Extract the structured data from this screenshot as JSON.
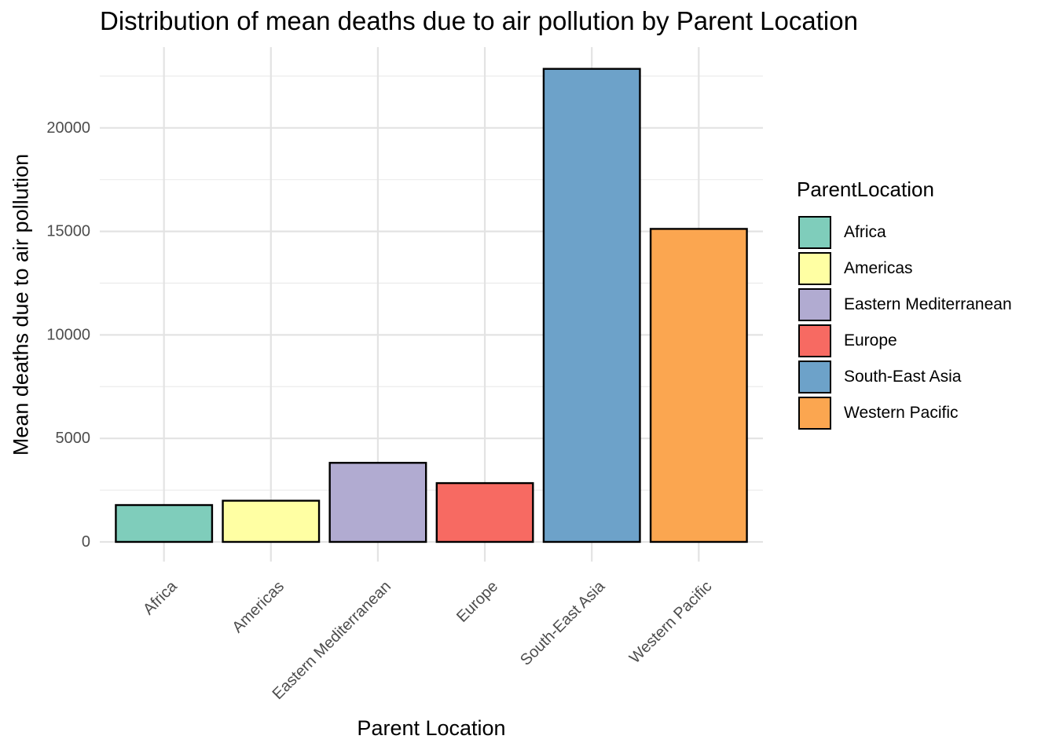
{
  "chart_data": {
    "type": "bar",
    "title": "Distribution of mean deaths due to air pollution by Parent Location",
    "xlabel": "Parent Location",
    "ylabel": "Mean deaths due to air pollution",
    "categories": [
      "Africa",
      "Americas",
      "Eastern Mediterranean",
      "Europe",
      "South-East Asia",
      "Western Pacific"
    ],
    "values": [
      1780,
      1990,
      3820,
      2840,
      22850,
      15120
    ],
    "colors": [
      "#7FCDBB",
      "#FFFFA3",
      "#B1ABD1",
      "#F76A62",
      "#6DA2C9",
      "#FBA650"
    ],
    "yticks": [
      0,
      5000,
      10000,
      15000,
      20000
    ],
    "ylim": [
      -950,
      23900
    ],
    "grid": true,
    "legend": {
      "title": "ParentLocation",
      "position": "right",
      "items": [
        "Africa",
        "Americas",
        "Eastern Mediterranean",
        "Europe",
        "South-East Asia",
        "Western Pacific"
      ]
    }
  }
}
